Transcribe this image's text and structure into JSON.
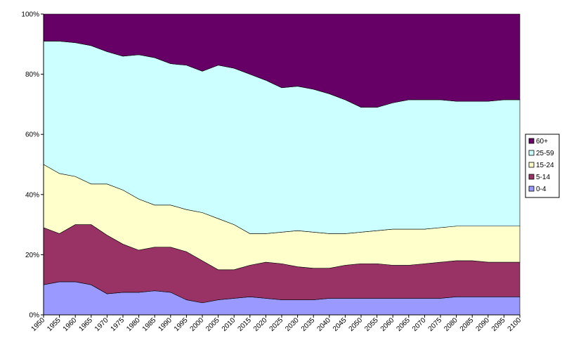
{
  "chart_data": {
    "type": "area",
    "stacked": true,
    "percent_stacked": true,
    "x": [
      1950,
      1955,
      1960,
      1965,
      1970,
      1975,
      1980,
      1985,
      1990,
      1995,
      2000,
      2005,
      2010,
      2015,
      2020,
      2025,
      2030,
      2035,
      2040,
      2045,
      2050,
      2055,
      2060,
      2065,
      2070,
      2075,
      2080,
      2085,
      2090,
      2095,
      2100
    ],
    "y_ticks": [
      "0%",
      "20%",
      "40%",
      "60%",
      "80%",
      "100%"
    ],
    "ylim": [
      0,
      100
    ],
    "grid": false,
    "legend_position": "right",
    "series": [
      {
        "name": "0-4",
        "color": "#9999ff",
        "values": [
          10,
          11,
          11,
          10,
          7,
          7.5,
          7.5,
          8,
          7.5,
          5,
          4,
          5,
          5.5,
          6,
          5.5,
          5,
          5,
          5,
          5.5,
          5.5,
          5.5,
          5.5,
          5.5,
          5.5,
          5.5,
          5.5,
          6,
          6,
          6,
          6,
          6
        ]
      },
      {
        "name": "5-14",
        "color": "#993366",
        "values": [
          19,
          16,
          19,
          20,
          19.5,
          16,
          14,
          14.5,
          15,
          16,
          14,
          10,
          9.5,
          10.5,
          12,
          12,
          11,
          10.5,
          10,
          11,
          11.5,
          11.5,
          11,
          11,
          11.5,
          12,
          12,
          12,
          11.5,
          11.5,
          11.5
        ]
      },
      {
        "name": "15-24",
        "color": "#ffffcc",
        "values": [
          21,
          20,
          16,
          13.5,
          17,
          18,
          17,
          14,
          14,
          14,
          16,
          17,
          15,
          10.5,
          9.5,
          10.5,
          12,
          12,
          11.5,
          10.5,
          10.5,
          11,
          12,
          12,
          11.5,
          11.5,
          11.5,
          11.5,
          12,
          12,
          12
        ]
      },
      {
        "name": "25-59",
        "color": "#ccffff",
        "values": [
          41,
          44,
          44.5,
          46,
          44,
          44.5,
          48,
          49,
          47,
          48,
          47,
          51,
          52,
          53,
          51,
          48,
          48,
          47.5,
          46.5,
          44.5,
          41.5,
          41,
          42,
          43,
          43,
          42.5,
          41.5,
          41.5,
          41.5,
          42,
          42
        ]
      },
      {
        "name": "60+",
        "color": "#660066",
        "values": [
          9,
          9,
          9.5,
          10.5,
          12.5,
          14,
          13.5,
          14.5,
          16.5,
          17,
          19,
          17,
          18,
          20,
          22,
          24.5,
          24,
          25,
          26.5,
          28.5,
          31,
          31,
          29.5,
          28.5,
          28.5,
          28.5,
          29,
          29,
          29,
          28.5,
          28.5
        ]
      }
    ]
  }
}
